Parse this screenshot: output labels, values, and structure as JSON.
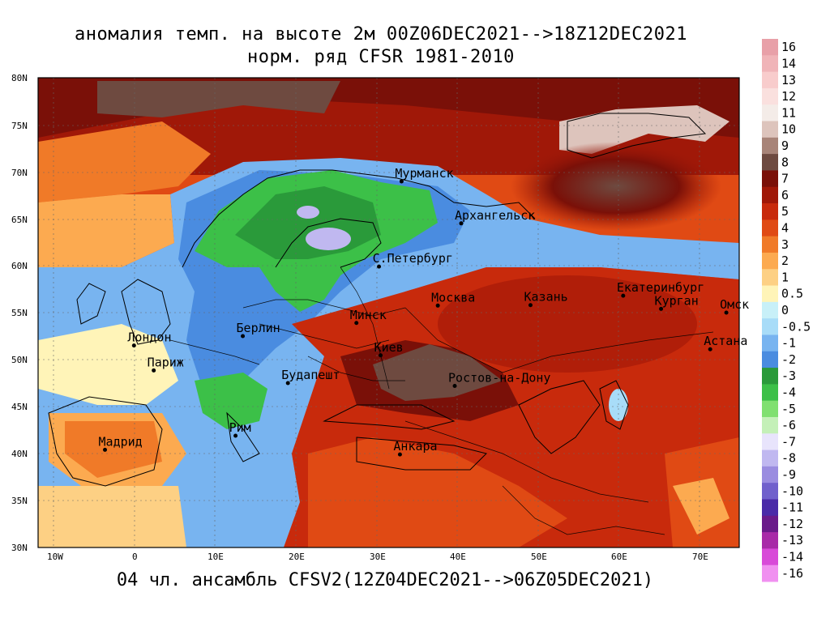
{
  "title": {
    "line1": "аномалия темп. на высоте 2м 00Z06DEC2021-->18Z12DEC2021",
    "line2": "норм. ряд CFSR 1981-2010"
  },
  "footer": "04 чл. ансамбль CFSV2(12Z04DEC2021-->06Z05DEC2021)",
  "map": {
    "lon_range": [
      -12,
      75
    ],
    "lat_range": [
      30,
      80
    ],
    "lat_ticks": [
      "30N",
      "35N",
      "40N",
      "45N",
      "50N",
      "55N",
      "60N",
      "65N",
      "70N",
      "75N",
      "80N"
    ],
    "lon_ticks": [
      "10W",
      "0",
      "10E",
      "20E",
      "30E",
      "40E",
      "50E",
      "60E",
      "70E"
    ],
    "cities": [
      {
        "name": "Мурманск",
        "lon": 33.1,
        "lat": 68.97
      },
      {
        "name": "Архангельск",
        "lon": 40.5,
        "lat": 64.5
      },
      {
        "name": "С.Петербург",
        "lon": 30.3,
        "lat": 59.9
      },
      {
        "name": "Москва",
        "lon": 37.6,
        "lat": 55.75
      },
      {
        "name": "Казань",
        "lon": 49.1,
        "lat": 55.8
      },
      {
        "name": "Екатеринбург",
        "lon": 60.6,
        "lat": 56.8
      },
      {
        "name": "Курган",
        "lon": 65.3,
        "lat": 55.4
      },
      {
        "name": "Омск",
        "lon": 73.4,
        "lat": 55.0
      },
      {
        "name": "Астана",
        "lon": 71.4,
        "lat": 51.1
      },
      {
        "name": "Минск",
        "lon": 27.5,
        "lat": 53.9
      },
      {
        "name": "Берлин",
        "lon": 13.4,
        "lat": 52.5
      },
      {
        "name": "Лондон",
        "lon": -0.1,
        "lat": 51.5
      },
      {
        "name": "Париж",
        "lon": 2.35,
        "lat": 48.85
      },
      {
        "name": "Киев",
        "lon": 30.5,
        "lat": 50.45
      },
      {
        "name": "Ростов-на-Дону",
        "lon": 39.7,
        "lat": 47.2
      },
      {
        "name": "Будапешт",
        "lon": 19.0,
        "lat": 47.5
      },
      {
        "name": "Рим",
        "lon": 12.5,
        "lat": 41.9
      },
      {
        "name": "Мадрид",
        "lon": -3.7,
        "lat": 40.4
      },
      {
        "name": "Анкара",
        "lon": 32.9,
        "lat": 39.9
      }
    ]
  },
  "colorbar": {
    "levels": [
      "16",
      "14",
      "13",
      "12",
      "11",
      "10",
      "9",
      "8",
      "7",
      "6",
      "5",
      "4",
      "3",
      "2",
      "1",
      "0.5",
      "0",
      "-0.5",
      "-1",
      "-2",
      "-3",
      "-4",
      "-5",
      "-6",
      "-7",
      "-8",
      "-9",
      "-10",
      "-11",
      "-12",
      "-13",
      "-14",
      "-16"
    ],
    "colors": [
      "#e8a0a8",
      "#f0b4b8",
      "#f8cccc",
      "#fae0de",
      "#f4ece8",
      "#ddc4bc",
      "#a88478",
      "#6e4a40",
      "#7a1008",
      "#a01808",
      "#c82a0c",
      "#e04a14",
      "#f07a28",
      "#fcaa50",
      "#fdd084",
      "#fff4b8",
      "#c8f0f8",
      "#a8dcf8",
      "#78b4f0",
      "#4a8ce0",
      "#2a9a3a",
      "#3cc048",
      "#80e070",
      "#c4f0b8",
      "#e8e4fc",
      "#c0b8f0",
      "#9a8ce0",
      "#7060cc",
      "#4a2aa8",
      "#6a1a8a",
      "#a82aa8",
      "#d84ad8",
      "#f090f0"
    ]
  }
}
